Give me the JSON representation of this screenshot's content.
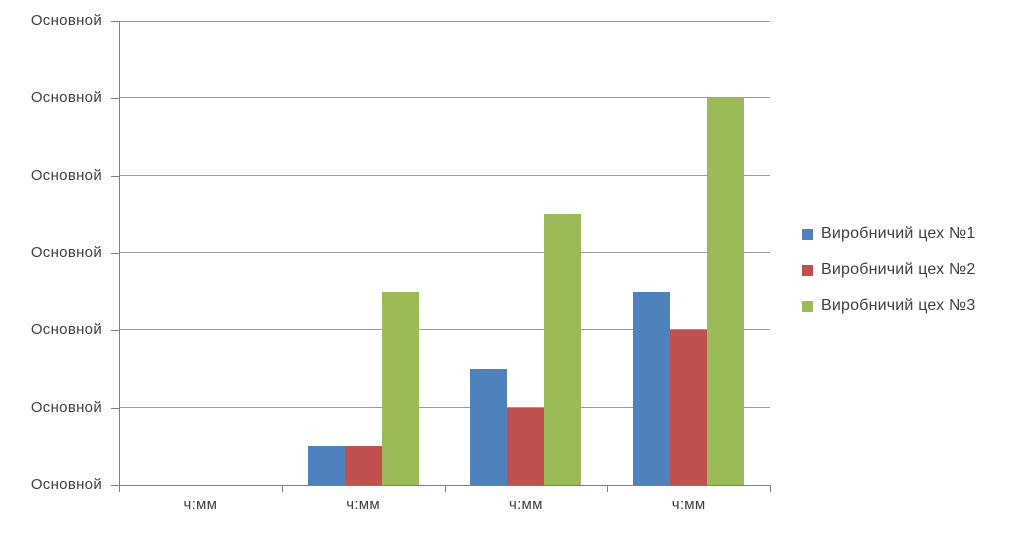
{
  "chart_data": {
    "type": "bar",
    "title": "",
    "xlabel": "",
    "ylabel": "",
    "categories": [
      "ч:мм",
      "ч:мм",
      "ч:мм",
      "ч:мм"
    ],
    "series": [
      {
        "name": "Виробничий цех №1",
        "color": "#4F81BD",
        "values": [
          0,
          0.5,
          1.5,
          2.5
        ]
      },
      {
        "name": "Виробничий цех №2",
        "color": "#C0504D",
        "values": [
          0,
          0.5,
          1.0,
          2.0
        ]
      },
      {
        "name": "Виробничий цех №3",
        "color": "#9BBB59",
        "values": [
          0,
          2.5,
          3.5,
          5.0
        ]
      }
    ],
    "ylim": [
      0,
      6
    ],
    "y_tick_labels": [
      "Основной",
      "Основной",
      "Основной",
      "Основной",
      "Основной",
      "Основной",
      "Основной"
    ],
    "x_tick_labels": [
      "ч:мм",
      "ч:мм",
      "ч:мм",
      "ч:мм"
    ],
    "grid": true,
    "legend": {
      "position": "right",
      "entries": [
        "Виробничий цех №1",
        "Виробничий цех №2",
        "Виробничий цех №3"
      ]
    }
  },
  "style_colors": {
    "background": "#FFFFFF",
    "gridline": "#9A9A9A",
    "axis": "#7F7F7F",
    "text": "#404040",
    "series": [
      "#4F81BD",
      "#C0504D",
      "#9BBB59"
    ]
  }
}
